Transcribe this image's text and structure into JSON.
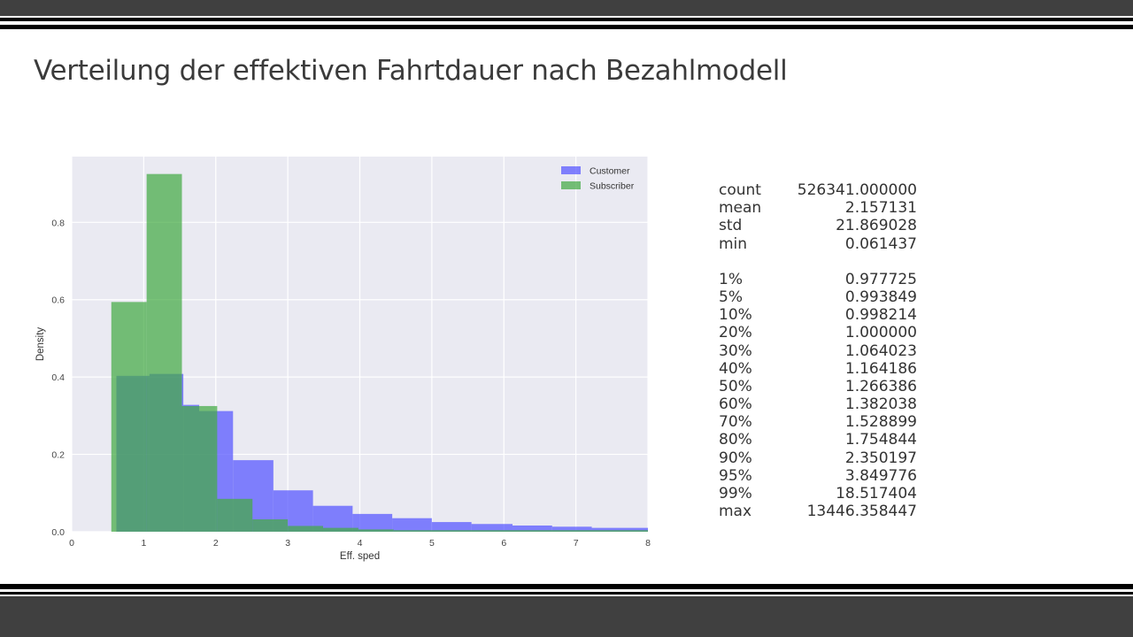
{
  "slide": {
    "title": "Verteilung der effektiven Fahrtdauer nach Bezahlmodell"
  },
  "chart_data": {
    "type": "histogram",
    "xlabel": "Eff. sped",
    "ylabel": "Density",
    "xlim": [
      0,
      8
    ],
    "ylim": [
      0,
      0.97
    ],
    "xticks": [
      0,
      1,
      2,
      3,
      4,
      5,
      6,
      7,
      8
    ],
    "yticks": [
      0.0,
      0.2,
      0.4,
      0.6,
      0.8
    ],
    "ytick_labels": [
      "0.0",
      "0.2",
      "0.4",
      "0.6",
      "0.8"
    ],
    "grid": true,
    "legend_position": "top-right",
    "series": [
      {
        "name": "Customer",
        "color": "#5555ff",
        "bins": [
          {
            "x0": 0.62,
            "x1": 1.08,
            "y": 0.403
          },
          {
            "x0": 1.08,
            "x1": 1.55,
            "y": 0.408
          },
          {
            "x0": 1.55,
            "x1": 1.77,
            "y": 0.328
          },
          {
            "x0": 1.77,
            "x1": 2.24,
            "y": 0.312
          },
          {
            "x0": 2.24,
            "x1": 2.8,
            "y": 0.185
          },
          {
            "x0": 2.8,
            "x1": 3.35,
            "y": 0.107
          },
          {
            "x0": 3.35,
            "x1": 3.9,
            "y": 0.067
          },
          {
            "x0": 3.9,
            "x1": 4.45,
            "y": 0.046
          },
          {
            "x0": 4.45,
            "x1": 5.0,
            "y": 0.035
          },
          {
            "x0": 5.0,
            "x1": 5.55,
            "y": 0.025
          },
          {
            "x0": 5.55,
            "x1": 6.12,
            "y": 0.02
          },
          {
            "x0": 6.12,
            "x1": 6.67,
            "y": 0.016
          },
          {
            "x0": 6.67,
            "x1": 7.22,
            "y": 0.013
          },
          {
            "x0": 7.22,
            "x1": 8.0,
            "y": 0.01
          }
        ]
      },
      {
        "name": "Subscriber",
        "color": "#44aa44",
        "bins": [
          {
            "x0": 0.55,
            "x1": 1.04,
            "y": 0.594
          },
          {
            "x0": 1.04,
            "x1": 1.53,
            "y": 0.925
          },
          {
            "x0": 1.53,
            "x1": 2.02,
            "y": 0.325
          },
          {
            "x0": 2.02,
            "x1": 2.51,
            "y": 0.085
          },
          {
            "x0": 2.51,
            "x1": 3.0,
            "y": 0.032
          },
          {
            "x0": 3.0,
            "x1": 3.49,
            "y": 0.015
          },
          {
            "x0": 3.49,
            "x1": 3.98,
            "y": 0.01
          },
          {
            "x0": 3.98,
            "x1": 4.47,
            "y": 0.006
          },
          {
            "x0": 4.47,
            "x1": 8.0,
            "y": 0.004
          }
        ]
      }
    ]
  },
  "stats": {
    "head": [
      {
        "label": "count",
        "value": "526341.000000"
      },
      {
        "label": "mean",
        "value": "2.157131"
      },
      {
        "label": "std",
        "value": "21.869028"
      },
      {
        "label": "min",
        "value": "0.061437"
      }
    ],
    "percentiles": [
      {
        "label": "1%",
        "value": "0.977725"
      },
      {
        "label": "5%",
        "value": "0.993849"
      },
      {
        "label": "10%",
        "value": "0.998214"
      },
      {
        "label": "20%",
        "value": "1.000000"
      },
      {
        "label": "30%",
        "value": "1.064023"
      },
      {
        "label": "40%",
        "value": "1.164186"
      },
      {
        "label": "50%",
        "value": "1.266386"
      },
      {
        "label": "60%",
        "value": "1.382038"
      },
      {
        "label": "70%",
        "value": "1.528899"
      },
      {
        "label": "80%",
        "value": "1.754844"
      },
      {
        "label": "90%",
        "value": "2.350197"
      },
      {
        "label": "95%",
        "value": "3.849776"
      },
      {
        "label": "99%",
        "value": "18.517404"
      },
      {
        "label": "max",
        "value": "13446.358447"
      }
    ]
  }
}
